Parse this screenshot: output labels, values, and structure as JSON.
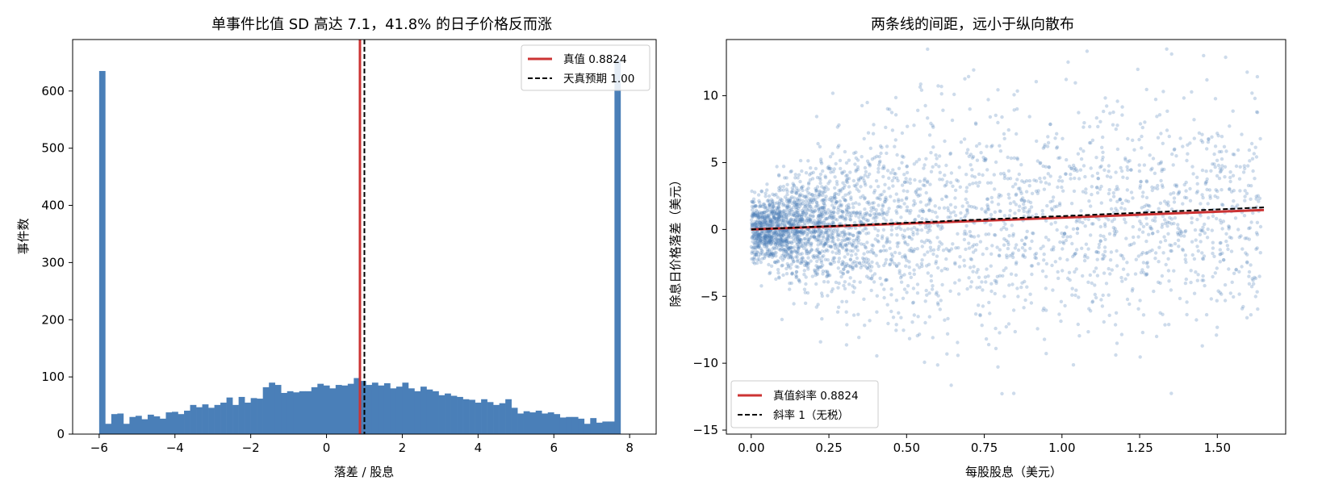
{
  "chart_data": [
    {
      "type": "bar",
      "title": "单事件比值 SD 高达 7.1，41.8% 的日子价格反而涨",
      "xlabel": "落差 / 股息",
      "ylabel": "事件数",
      "xlim": [
        -6.7,
        8.7
      ],
      "ylim": [
        0,
        690
      ],
      "xticks": [
        -6,
        -4,
        -2,
        0,
        2,
        4,
        6,
        8
      ],
      "xtick_labels": [
        "−6",
        "−4",
        "−2",
        "0",
        "2",
        "4",
        "6",
        "8"
      ],
      "yticks": [
        0,
        100,
        200,
        300,
        400,
        500,
        600
      ],
      "yticks_labels": [
        "0",
        "100",
        "200",
        "300",
        "400",
        "500",
        "600"
      ],
      "bin_start": -6,
      "bin_width": 0.16,
      "values": [
        635,
        18,
        35,
        36,
        18,
        30,
        32,
        26,
        34,
        31,
        27,
        38,
        39,
        35,
        41,
        51,
        47,
        52,
        46,
        51,
        55,
        64,
        51,
        65,
        55,
        63,
        62,
        82,
        90,
        86,
        72,
        75,
        73,
        75,
        75,
        82,
        88,
        85,
        80,
        86,
        85,
        88,
        98,
        93,
        86,
        90,
        85,
        89,
        80,
        83,
        90,
        80,
        75,
        83,
        78,
        75,
        68,
        71,
        67,
        65,
        61,
        60,
        55,
        61,
        56,
        51,
        54,
        61,
        46,
        36,
        40,
        38,
        41,
        36,
        38,
        35,
        29,
        30,
        30,
        27,
        18,
        28,
        20,
        22,
        22,
        655
      ],
      "bar_color": "#4a7fb8",
      "vlines": [
        {
          "x": 0.8824,
          "color": "#cc3333",
          "style": "solid"
        },
        {
          "x": 1.0,
          "color": "#000000",
          "style": "dashed"
        }
      ],
      "legend": {
        "placement": "top-right",
        "entries": [
          {
            "label": "真值 0.8824",
            "color": "#cc3333",
            "style": "solid"
          },
          {
            "label": "天真预期 1.00",
            "color": "#000000",
            "style": "dashed"
          }
        ]
      },
      "grid": false
    },
    {
      "type": "scatter",
      "title": "两条线的间距，远小于纵向散布",
      "xlabel": "每股股息（美元）",
      "ylabel": "除息日价格落差（美元）",
      "xlim": [
        -0.08,
        1.72
      ],
      "ylim": [
        -15.3,
        14.2
      ],
      "xticks": [
        0.0,
        0.25,
        0.5,
        0.75,
        1.0,
        1.25,
        1.5
      ],
      "xtick_labels": [
        "0.00",
        "0.25",
        "0.50",
        "0.75",
        "1.00",
        "1.25",
        "1.50"
      ],
      "yticks": [
        -15,
        -10,
        -5,
        0,
        5,
        10
      ],
      "yticks_labels": [
        "−15",
        "−10",
        "−5",
        "0",
        "5",
        "10"
      ],
      "point_color": "#4a7fb8",
      "x_range": [
        0.0,
        1.65
      ],
      "lines": [
        {
          "label": "真值斜率 0.8824",
          "slope": 0.8824,
          "color": "#cc3333",
          "style": "solid"
        },
        {
          "label": "斜率 1（无税）",
          "slope": 1.0,
          "color": "#000000",
          "style": "dashed"
        }
      ],
      "legend": {
        "placement": "bottom-left",
        "entries": [
          {
            "label": "真值斜率 0.8824",
            "color": "#cc3333",
            "style": "solid"
          },
          {
            "label": "斜率 1（无税）",
            "color": "#000000",
            "style": "dashed"
          }
        ]
      },
      "grid": false
    }
  ]
}
